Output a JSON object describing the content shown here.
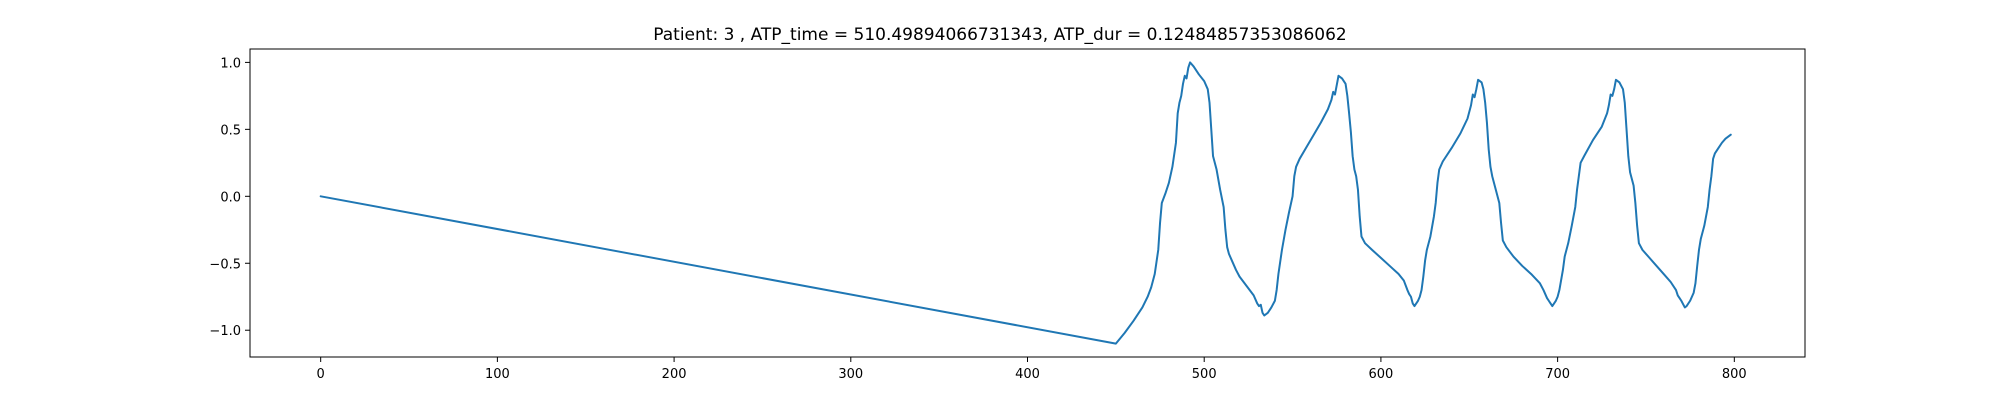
{
  "chart_data": {
    "type": "line",
    "title": "Patient: 3 , ATP_time = 510.49894066731343, ATP_dur = 0.12484857353086062",
    "xlabel": "",
    "ylabel": "",
    "xlim": [
      -40,
      840
    ],
    "ylim": [
      -1.2,
      1.1
    ],
    "xticks": [
      0,
      100,
      200,
      300,
      400,
      500,
      600,
      700,
      800
    ],
    "yticks": [
      -1.0,
      -0.5,
      0.0,
      0.5,
      1.0
    ],
    "ytick_labels": [
      "−1.0",
      "−0.5",
      "0.0",
      "0.5",
      "1.0"
    ],
    "grid": false,
    "legend": "none",
    "series": [
      {
        "color": "#1f77b4",
        "points": [
          [
            0,
            0.0
          ],
          [
            450,
            -1.1
          ],
          [
            455,
            -1.02
          ],
          [
            460,
            -0.93
          ],
          [
            465,
            -0.83
          ],
          [
            468,
            -0.75
          ],
          [
            470,
            -0.68
          ],
          [
            472,
            -0.58
          ],
          [
            474,
            -0.4
          ],
          [
            475,
            -0.2
          ],
          [
            476,
            -0.05
          ],
          [
            478,
            0.02
          ],
          [
            480,
            0.1
          ],
          [
            482,
            0.22
          ],
          [
            484,
            0.4
          ],
          [
            485,
            0.62
          ],
          [
            486,
            0.7
          ],
          [
            487,
            0.75
          ],
          [
            488,
            0.84
          ],
          [
            489,
            0.9
          ],
          [
            490,
            0.88
          ],
          [
            491,
            0.96
          ],
          [
            492,
            1.0
          ],
          [
            494,
            0.97
          ],
          [
            497,
            0.91
          ],
          [
            500,
            0.86
          ],
          [
            502,
            0.8
          ],
          [
            503,
            0.7
          ],
          [
            504,
            0.5
          ],
          [
            505,
            0.3
          ],
          [
            507,
            0.2
          ],
          [
            509,
            0.05
          ],
          [
            511,
            -0.08
          ],
          [
            512,
            -0.25
          ],
          [
            513,
            -0.38
          ],
          [
            514,
            -0.43
          ],
          [
            516,
            -0.49
          ],
          [
            518,
            -0.55
          ],
          [
            520,
            -0.6
          ],
          [
            524,
            -0.67
          ],
          [
            528,
            -0.74
          ],
          [
            530,
            -0.8
          ],
          [
            531,
            -0.82
          ],
          [
            532,
            -0.81
          ],
          [
            533,
            -0.87
          ],
          [
            534,
            -0.89
          ],
          [
            536,
            -0.87
          ],
          [
            538,
            -0.83
          ],
          [
            540,
            -0.78
          ],
          [
            541,
            -0.7
          ],
          [
            542,
            -0.58
          ],
          [
            544,
            -0.4
          ],
          [
            546,
            -0.25
          ],
          [
            548,
            -0.12
          ],
          [
            550,
            0.0
          ],
          [
            551,
            0.15
          ],
          [
            552,
            0.22
          ],
          [
            554,
            0.28
          ],
          [
            558,
            0.37
          ],
          [
            562,
            0.46
          ],
          [
            566,
            0.55
          ],
          [
            570,
            0.65
          ],
          [
            572,
            0.72
          ],
          [
            573,
            0.78
          ],
          [
            574,
            0.76
          ],
          [
            575,
            0.83
          ],
          [
            576,
            0.9
          ],
          [
            578,
            0.88
          ],
          [
            580,
            0.84
          ],
          [
            581,
            0.75
          ],
          [
            582,
            0.62
          ],
          [
            583,
            0.48
          ],
          [
            584,
            0.3
          ],
          [
            585,
            0.2
          ],
          [
            586,
            0.15
          ],
          [
            587,
            0.05
          ],
          [
            588,
            -0.15
          ],
          [
            589,
            -0.3
          ],
          [
            591,
            -0.35
          ],
          [
            595,
            -0.4
          ],
          [
            600,
            -0.46
          ],
          [
            605,
            -0.52
          ],
          [
            610,
            -0.58
          ],
          [
            613,
            -0.63
          ],
          [
            615,
            -0.7
          ],
          [
            616,
            -0.73
          ],
          [
            617,
            -0.75
          ],
          [
            618,
            -0.8
          ],
          [
            619,
            -0.82
          ],
          [
            620,
            -0.8
          ],
          [
            621,
            -0.78
          ],
          [
            622,
            -0.75
          ],
          [
            623,
            -0.7
          ],
          [
            624,
            -0.6
          ],
          [
            625,
            -0.48
          ],
          [
            626,
            -0.4
          ],
          [
            628,
            -0.3
          ],
          [
            630,
            -0.15
          ],
          [
            631,
            -0.05
          ],
          [
            632,
            0.1
          ],
          [
            633,
            0.2
          ],
          [
            635,
            0.26
          ],
          [
            640,
            0.36
          ],
          [
            645,
            0.47
          ],
          [
            649,
            0.58
          ],
          [
            651,
            0.68
          ],
          [
            652,
            0.76
          ],
          [
            653,
            0.74
          ],
          [
            654,
            0.8
          ],
          [
            655,
            0.87
          ],
          [
            657,
            0.85
          ],
          [
            658,
            0.8
          ],
          [
            659,
            0.7
          ],
          [
            660,
            0.55
          ],
          [
            661,
            0.35
          ],
          [
            662,
            0.22
          ],
          [
            663,
            0.15
          ],
          [
            665,
            0.05
          ],
          [
            667,
            -0.05
          ],
          [
            668,
            -0.2
          ],
          [
            669,
            -0.33
          ],
          [
            671,
            -0.38
          ],
          [
            675,
            -0.45
          ],
          [
            680,
            -0.52
          ],
          [
            685,
            -0.58
          ],
          [
            690,
            -0.65
          ],
          [
            692,
            -0.7
          ],
          [
            694,
            -0.76
          ],
          [
            695,
            -0.78
          ],
          [
            696,
            -0.8
          ],
          [
            697,
            -0.82
          ],
          [
            698,
            -0.8
          ],
          [
            699,
            -0.78
          ],
          [
            700,
            -0.75
          ],
          [
            701,
            -0.7
          ],
          [
            703,
            -0.55
          ],
          [
            704,
            -0.45
          ],
          [
            706,
            -0.35
          ],
          [
            708,
            -0.22
          ],
          [
            710,
            -0.08
          ],
          [
            711,
            0.05
          ],
          [
            712,
            0.15
          ],
          [
            713,
            0.25
          ],
          [
            715,
            0.3
          ],
          [
            720,
            0.42
          ],
          [
            725,
            0.52
          ],
          [
            728,
            0.62
          ],
          [
            729,
            0.68
          ],
          [
            730,
            0.76
          ],
          [
            731,
            0.75
          ],
          [
            732,
            0.8
          ],
          [
            733,
            0.87
          ],
          [
            735,
            0.85
          ],
          [
            737,
            0.8
          ],
          [
            738,
            0.7
          ],
          [
            739,
            0.5
          ],
          [
            740,
            0.3
          ],
          [
            741,
            0.18
          ],
          [
            743,
            0.08
          ],
          [
            744,
            -0.05
          ],
          [
            745,
            -0.22
          ],
          [
            746,
            -0.35
          ],
          [
            748,
            -0.4
          ],
          [
            752,
            -0.46
          ],
          [
            756,
            -0.52
          ],
          [
            760,
            -0.58
          ],
          [
            764,
            -0.64
          ],
          [
            767,
            -0.7
          ],
          [
            768,
            -0.74
          ],
          [
            769,
            -0.76
          ],
          [
            770,
            -0.78
          ],
          [
            772,
            -0.83
          ],
          [
            773,
            -0.82
          ],
          [
            775,
            -0.78
          ],
          [
            777,
            -0.72
          ],
          [
            778,
            -0.65
          ],
          [
            779,
            -0.52
          ],
          [
            780,
            -0.4
          ],
          [
            781,
            -0.32
          ],
          [
            783,
            -0.22
          ],
          [
            785,
            -0.08
          ],
          [
            786,
            0.05
          ],
          [
            787,
            0.15
          ],
          [
            788,
            0.28
          ],
          [
            789,
            0.32
          ],
          [
            791,
            0.36
          ],
          [
            793,
            0.4
          ],
          [
            795,
            0.43
          ],
          [
            798,
            0.46
          ]
        ]
      }
    ]
  }
}
